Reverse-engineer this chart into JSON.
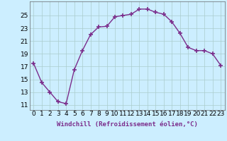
{
  "x": [
    0,
    1,
    2,
    3,
    4,
    5,
    6,
    7,
    8,
    9,
    10,
    11,
    12,
    13,
    14,
    15,
    16,
    17,
    18,
    19,
    20,
    21,
    22,
    23
  ],
  "y": [
    17.5,
    14.5,
    13.0,
    11.5,
    11.2,
    16.5,
    19.5,
    22.0,
    23.2,
    23.3,
    24.8,
    25.0,
    25.2,
    26.0,
    26.0,
    25.5,
    25.2,
    24.0,
    22.2,
    20.0,
    19.5,
    19.5,
    19.0,
    17.2
  ],
  "line_color": "#7b2d8b",
  "marker": "+",
  "markersize": 4,
  "linewidth": 1.0,
  "background_color": "#cceeff",
  "grid_color": "#aacccc",
  "xlabel": "Windchill (Refroidissement éolien,°C)",
  "ylabel_ticks": [
    11,
    13,
    15,
    17,
    19,
    21,
    23,
    25
  ],
  "ylim": [
    10.2,
    27.2
  ],
  "xlim": [
    -0.5,
    23.5
  ],
  "xtick_labels": [
    "0",
    "1",
    "2",
    "3",
    "4",
    "5",
    "6",
    "7",
    "8",
    "9",
    "10",
    "11",
    "12",
    "13",
    "14",
    "15",
    "16",
    "17",
    "18",
    "19",
    "20",
    "21",
    "22",
    "23"
  ],
  "xlabel_fontsize": 6.5,
  "tick_fontsize": 6.5
}
